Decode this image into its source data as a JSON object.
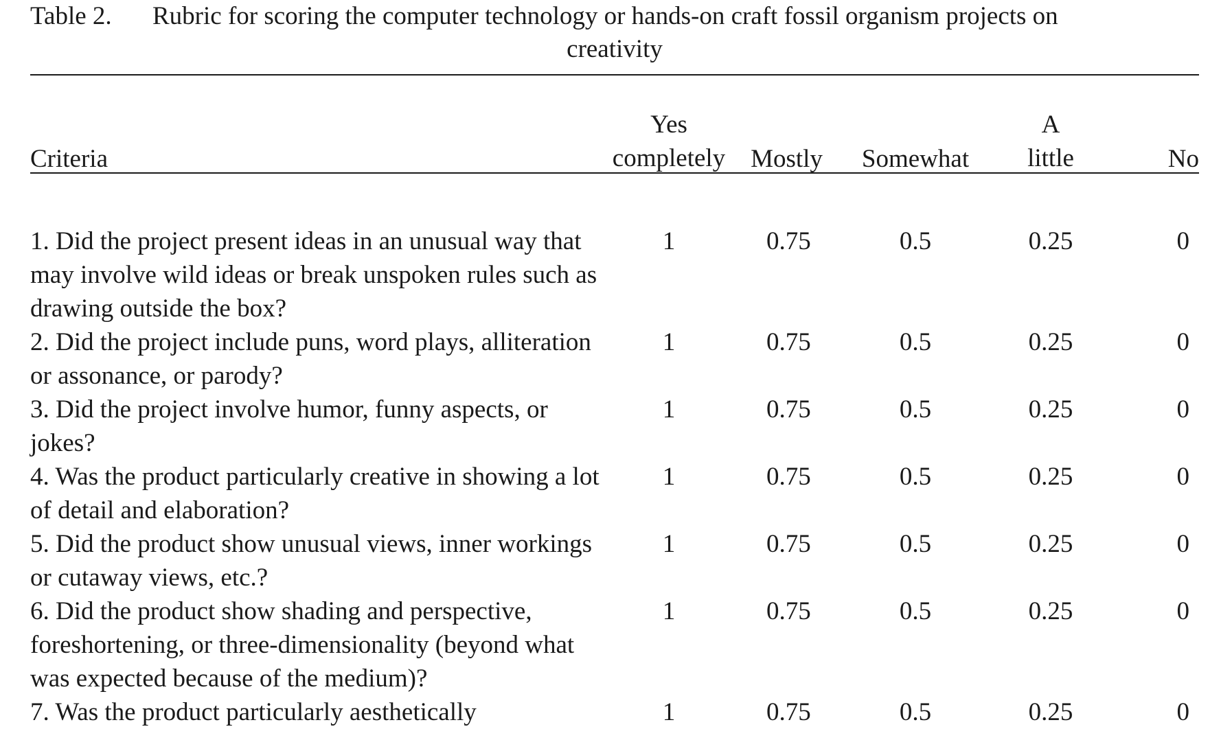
{
  "caption": {
    "label": "Table 2.",
    "text_line1": "Rubric for scoring the computer technology or hands-on craft fossil organism projects on",
    "text_line2": "creativity"
  },
  "table": {
    "headers": {
      "criteria": "Criteria",
      "yes_line1": "Yes",
      "yes_line2": "completely",
      "mostly": "Mostly",
      "somewhat": "Somewhat",
      "little_line1": "A",
      "little_line2": "little",
      "no": "No"
    },
    "rows": [
      {
        "criteria": "1. Did the project present ideas in an unusual way that may involve wild ideas or break unspoken rules such as drawing outside the box?",
        "yes": "1",
        "mostly": "0.75",
        "somewhat": "0.5",
        "little": "0.25",
        "no": "0"
      },
      {
        "criteria": "2. Did the project include puns, word plays, alliteration or assonance, or parody?",
        "yes": "1",
        "mostly": "0.75",
        "somewhat": "0.5",
        "little": "0.25",
        "no": "0"
      },
      {
        "criteria": "3. Did the project involve humor, funny aspects, or jokes?",
        "yes": "1",
        "mostly": "0.75",
        "somewhat": "0.5",
        "little": "0.25",
        "no": "0"
      },
      {
        "criteria": "4. Was the product particularly creative in showing a lot of detail and elaboration?",
        "yes": "1",
        "mostly": "0.75",
        "somewhat": "0.5",
        "little": "0.25",
        "no": "0"
      },
      {
        "criteria": "5. Did the product show unusual views, inner workings or cutaway views, etc.?",
        "yes": "1",
        "mostly": "0.75",
        "somewhat": "0.5",
        "little": "0.25",
        "no": "0"
      },
      {
        "criteria": "6. Did the product show shading and perspective, foreshortening, or three-dimensionality (beyond what was expected because of the medium)?",
        "yes": "1",
        "mostly": "0.75",
        "somewhat": "0.5",
        "little": "0.25",
        "no": "0"
      },
      {
        "criteria": "7. Was the product particularly aesthetically",
        "yes": "1",
        "mostly": "0.75",
        "somewhat": "0.5",
        "little": "0.25",
        "no": "0"
      }
    ]
  }
}
